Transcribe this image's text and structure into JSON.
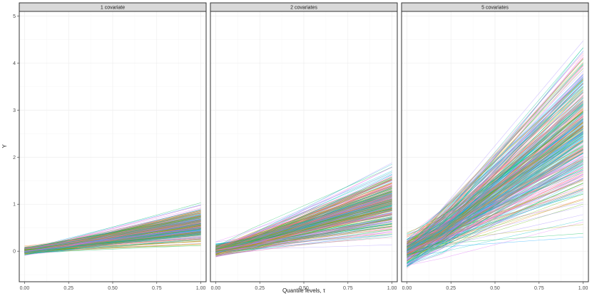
{
  "chart_data": {
    "type": "line",
    "title": "",
    "xlabel": "Quantile levels, τ",
    "ylabel": "Y",
    "xlim": [
      -0.03,
      1.03
    ],
    "ylim": [
      -0.65,
      5.1
    ],
    "x_ticks": [
      0.0,
      0.25,
      0.5,
      0.75,
      1.0
    ],
    "x_tick_labels": [
      "0.00",
      "0.25",
      "0.50",
      "0.75",
      "1.00"
    ],
    "y_ticks": [
      0,
      1,
      2,
      3,
      4,
      5
    ],
    "y_tick_labels": [
      "0",
      "1",
      "2",
      "3",
      "4",
      "5"
    ],
    "grid": true,
    "facets": [
      {
        "label": "1 covariate",
        "n_lines": 320,
        "start_range": [
          -0.1,
          0.12
        ],
        "end_range": [
          0.02,
          1.03
        ],
        "end_typical": 0.55,
        "knot_x": 0.2
      },
      {
        "label": "2 covariates",
        "n_lines": 320,
        "start_range": [
          -0.15,
          0.2
        ],
        "end_range": [
          0.05,
          1.88
        ],
        "end_typical": 1.05,
        "knot_x": 0.2
      },
      {
        "label": "5 covariates",
        "n_lines": 360,
        "start_range": [
          -0.45,
          0.45
        ],
        "end_range": [
          0.3,
          4.88
        ],
        "end_typical": 2.6,
        "knot_x": 0.2
      }
    ],
    "palette": [
      "#F8766D",
      "#E7861B",
      "#C49A00",
      "#A3A500",
      "#53B400",
      "#00BC56",
      "#00C094",
      "#00BFC4",
      "#00B6EB",
      "#06A4FF",
      "#A58AFF",
      "#DF70F8",
      "#FB61D7",
      "#FF66A8"
    ]
  }
}
